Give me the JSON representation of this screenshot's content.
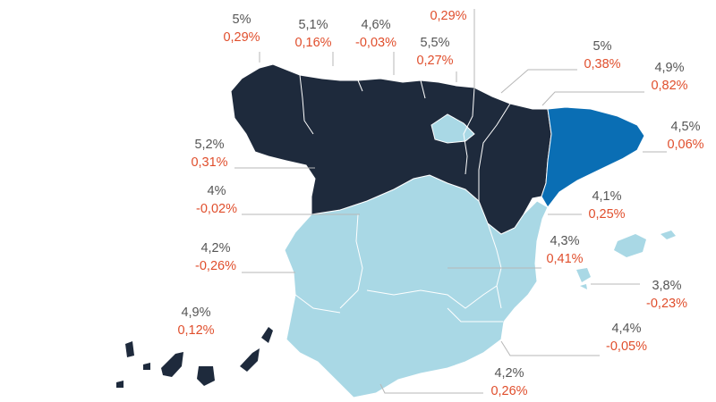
{
  "colors": {
    "dark": "#1e2a3c",
    "highlight": "#0a6eb4",
    "light": "#a9d8e5",
    "value": "#555555",
    "delta": "#e04e2c",
    "leader": "#b7b7b7"
  },
  "top_partial": {
    "delta": "0,29%"
  },
  "labels": [
    {
      "id": "galicia",
      "value": "5%",
      "delta": "0,29%"
    },
    {
      "id": "asturias",
      "value": "5,1%",
      "delta": "0,16%"
    },
    {
      "id": "cantabria",
      "value": "4,6%",
      "delta": "-0,03%"
    },
    {
      "id": "pais-vasco",
      "value": "5,5%",
      "delta": "0,27%"
    },
    {
      "id": "navarra",
      "value": "5%",
      "delta": "0,38%"
    },
    {
      "id": "aragon",
      "value": "4,9%",
      "delta": "0,82%"
    },
    {
      "id": "cataluna",
      "value": "4,5%",
      "delta": "0,06%"
    },
    {
      "id": "castilla-leon",
      "value": "5,2%",
      "delta": "0,31%"
    },
    {
      "id": "madrid",
      "value": "4%",
      "delta": "-0,02%"
    },
    {
      "id": "valencia",
      "value": "4,1%",
      "delta": "0,25%"
    },
    {
      "id": "castilla-la-mancha",
      "value": "4,3%",
      "delta": "0,41%"
    },
    {
      "id": "extremadura",
      "value": "4,2%",
      "delta": "-0,26%"
    },
    {
      "id": "baleares",
      "value": "3,8%",
      "delta": "-0,23%"
    },
    {
      "id": "canarias",
      "value": "4,9%",
      "delta": "0,12%"
    },
    {
      "id": "murcia",
      "value": "4,4%",
      "delta": "-0,05%"
    },
    {
      "id": "andalucia",
      "value": "4,2%",
      "delta": "0,26%"
    }
  ]
}
